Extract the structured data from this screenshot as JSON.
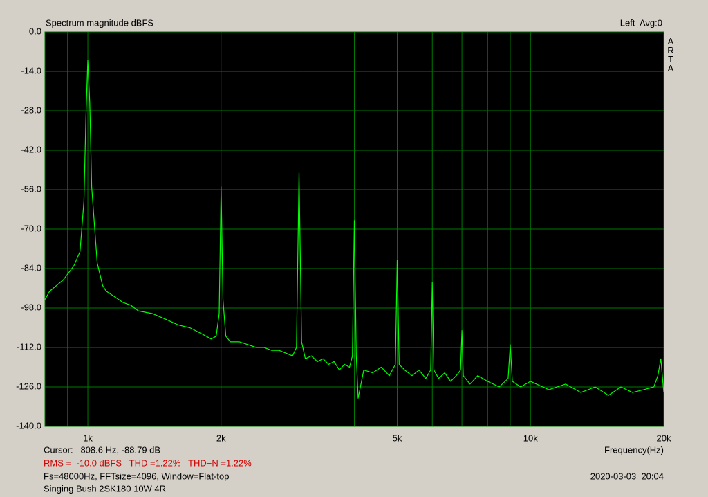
{
  "chart_data": {
    "type": "line",
    "title": "Spectrum magnitude dBFS",
    "channel_label": "Left  Avg:0",
    "brand": "ARTA",
    "x_label": "Frequency(Hz)",
    "cursor": "Cursor:   808.6 Hz, -88.79 dB",
    "measurements": "RMS =  -10.0 dBFS   THD =1.22%   THD+N =1.22%",
    "settings": "Fs=48000Hz, FFTsize=4096, Window=Flat-top",
    "timestamp": "2020-03-03  20:04",
    "device": "Singing Bush 2SK180 10W 4R",
    "x_scale": "log",
    "grid": true,
    "xlim": [
      800,
      20000
    ],
    "ylim": [
      -140,
      0
    ],
    "xticks": [
      {
        "value": 1000,
        "label": "1k"
      },
      {
        "value": 2000,
        "label": "2k"
      },
      {
        "value": 5000,
        "label": "5k"
      },
      {
        "value": 10000,
        "label": "10k"
      },
      {
        "value": 20000,
        "label": "20k"
      }
    ],
    "xminor": [
      900,
      3000,
      4000,
      6000,
      7000,
      8000,
      9000
    ],
    "yticks": [
      {
        "value": 0,
        "label": "0.0"
      },
      {
        "value": -14,
        "label": "-14.0"
      },
      {
        "value": -28,
        "label": "-28.0"
      },
      {
        "value": -42,
        "label": "-42.0"
      },
      {
        "value": -56,
        "label": "-56.0"
      },
      {
        "value": -70,
        "label": "-70.0"
      },
      {
        "value": -84,
        "label": "-84.0"
      },
      {
        "value": -98,
        "label": "-98.0"
      },
      {
        "value": -112,
        "label": "-112.0"
      },
      {
        "value": -126,
        "label": "-126.0"
      },
      {
        "value": -140,
        "label": "-140.0"
      }
    ],
    "x": [
      800,
      820,
      850,
      880,
      900,
      930,
      960,
      980,
      990,
      1000,
      1010,
      1020,
      1050,
      1080,
      1100,
      1150,
      1200,
      1250,
      1300,
      1400,
      1500,
      1600,
      1700,
      1800,
      1850,
      1900,
      1950,
      1980,
      2000,
      2020,
      2050,
      2100,
      2200,
      2300,
      2400,
      2500,
      2600,
      2700,
      2800,
      2900,
      2960,
      3000,
      3040,
      3100,
      3200,
      3300,
      3400,
      3500,
      3600,
      3700,
      3800,
      3900,
      3960,
      4000,
      4040,
      4080,
      4200,
      4400,
      4600,
      4800,
      4950,
      5000,
      5050,
      5200,
      5400,
      5600,
      5800,
      5950,
      6000,
      6050,
      6200,
      6400,
      6600,
      6800,
      6950,
      7000,
      7050,
      7300,
      7600,
      8000,
      8500,
      8900,
      9000,
      9100,
      9500,
      10000,
      11000,
      12000,
      13000,
      14000,
      15000,
      16000,
      17000,
      18000,
      19000,
      19400,
      19700,
      20000
    ],
    "series": [
      {
        "name": "Left",
        "color": "#00ff00",
        "values": [
          -95,
          -92,
          -90,
          -88,
          -86,
          -83,
          -78,
          -60,
          -30,
          -10,
          -25,
          -55,
          -82,
          -90,
          -92,
          -94,
          -96,
          -97,
          -99,
          -100,
          -102,
          -104,
          -105,
          -107,
          -108,
          -109,
          -108,
          -100,
          -55,
          -95,
          -108,
          -110,
          -110,
          -111,
          -112,
          -112,
          -113,
          -113,
          -114,
          -115,
          -112,
          -50,
          -110,
          -116,
          -115,
          -117,
          -116,
          -118,
          -117,
          -120,
          -118,
          -119,
          -115,
          -67,
          -115,
          -130,
          -120,
          -121,
          -119,
          -122,
          -118,
          -81,
          -118,
          -120,
          -122,
          -120,
          -123,
          -120,
          -89,
          -120,
          -123,
          -121,
          -124,
          -122,
          -120,
          -106,
          -122,
          -125,
          -122,
          -124,
          -126,
          -123,
          -111,
          -124,
          -126,
          -124,
          -127,
          -125,
          -128,
          -126,
          -129,
          -126,
          -128,
          -127,
          -126,
          -122,
          -116,
          -128
        ]
      }
    ]
  }
}
